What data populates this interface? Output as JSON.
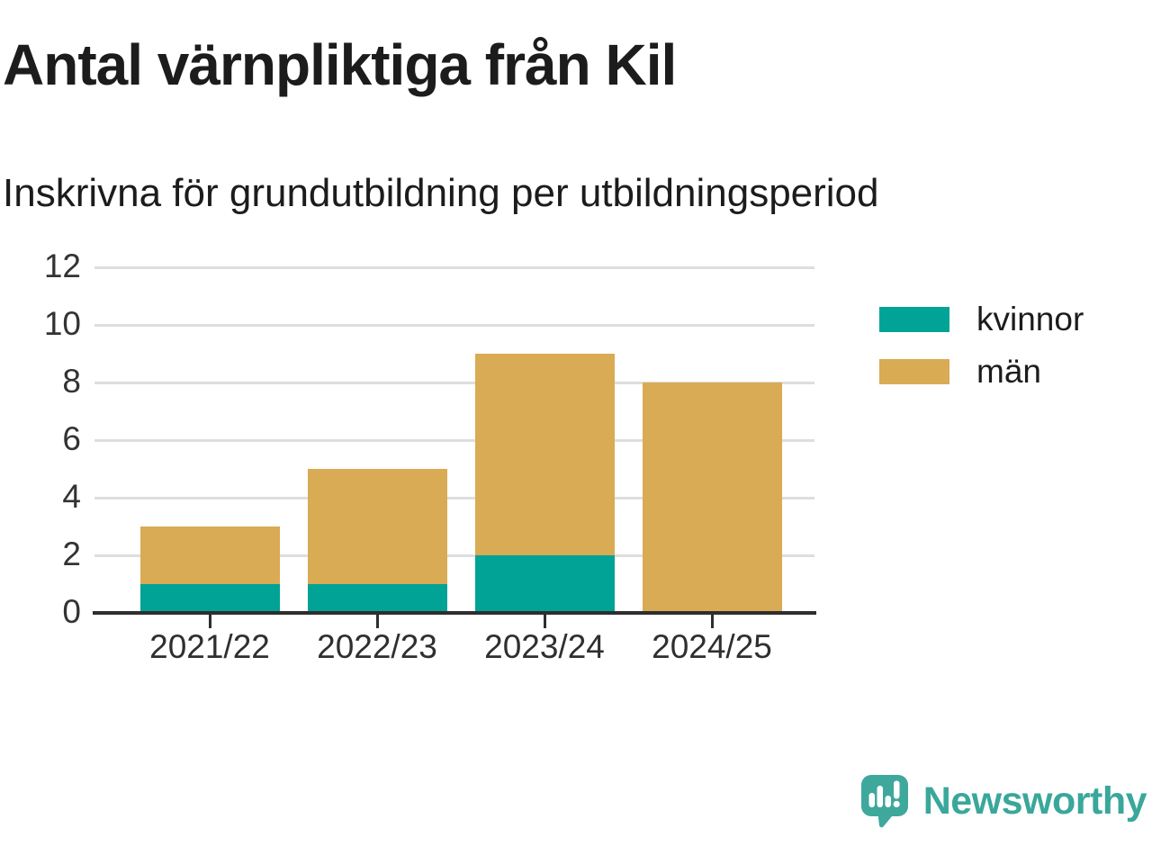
{
  "title": "Antal värnpliktiga från Kil",
  "subtitle": "Inskrivna för grundutbildning per utbildningsperiod",
  "chart_data": {
    "type": "bar",
    "stacked": true,
    "categories": [
      "2021/22",
      "2022/23",
      "2023/24",
      "2024/25"
    ],
    "series": [
      {
        "name": "kvinnor",
        "color": "#00a396",
        "values": [
          1,
          1,
          2,
          0
        ]
      },
      {
        "name": "män",
        "color": "#d9ab54",
        "values": [
          2,
          4,
          7,
          8
        ]
      }
    ],
    "totals": [
      3,
      5,
      9,
      8
    ],
    "title": "Antal värnpliktiga från Kil",
    "subtitle": "Inskrivna för grundutbildning per utbildningsperiod",
    "xlabel": "",
    "ylabel": "",
    "ylim": [
      0,
      12
    ],
    "yticks": [
      0,
      2,
      4,
      6,
      8,
      10,
      12
    ],
    "grid": true,
    "legend_position": "right"
  },
  "colors": {
    "grid": "#dedede",
    "axis": "#2e2e2e",
    "title_text": "#1c1c1c",
    "tick_text": "#333333"
  },
  "branding": {
    "name": "Newsworthy",
    "color": "#3aa79b",
    "icon": "newsworthy-speech-bubble-barchart-icon"
  }
}
